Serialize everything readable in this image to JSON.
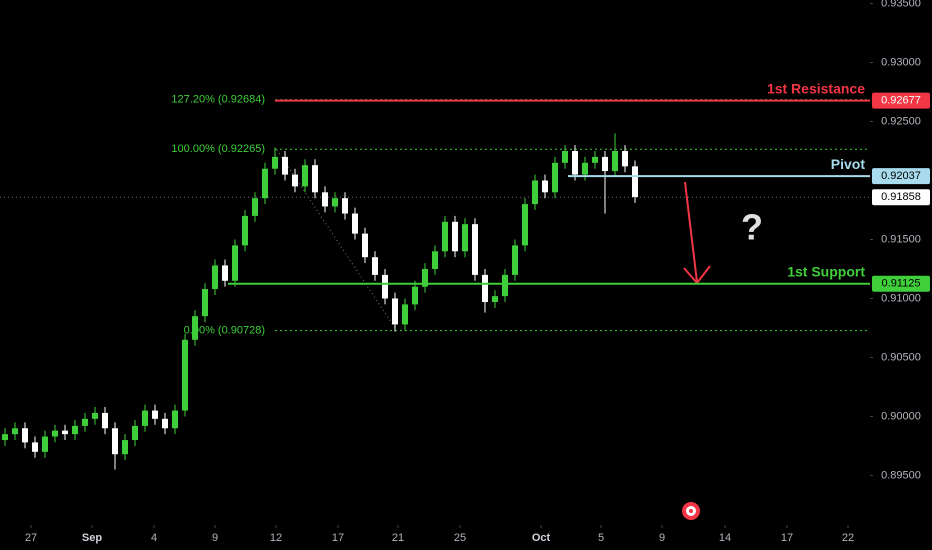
{
  "chart_data": {
    "type": "candlestick",
    "xlim": [
      -0.5,
      86.5
    ],
    "ylim": [
      0.8908,
      0.9353
    ],
    "xticks": [
      {
        "value": 2.6,
        "label": "27"
      },
      {
        "value": 8.7,
        "label": "Sep"
      },
      {
        "value": 14.9,
        "label": "4"
      },
      {
        "value": 21,
        "label": "9"
      },
      {
        "value": 27.1,
        "label": "12"
      },
      {
        "value": 33.3,
        "label": "17"
      },
      {
        "value": 39.3,
        "label": "21"
      },
      {
        "value": 45.5,
        "label": "25"
      },
      {
        "value": 53.6,
        "label": "Oct"
      },
      {
        "value": 59.6,
        "label": "5"
      },
      {
        "value": 65.7,
        "label": "9"
      },
      {
        "value": 72,
        "label": "14"
      },
      {
        "value": 78.2,
        "label": "17"
      },
      {
        "value": 84.3,
        "label": "22"
      }
    ],
    "yticks": [
      {
        "value": 0.935,
        "label": "0.93500"
      },
      {
        "value": 0.93,
        "label": "0.93000"
      },
      {
        "value": 0.925,
        "label": "0.92500"
      },
      {
        "value": 0.915,
        "label": "0.91500"
      },
      {
        "value": 0.91,
        "label": "0.91000"
      },
      {
        "value": 0.905,
        "label": "0.90500"
      },
      {
        "value": 0.9,
        "label": "0.90000"
      },
      {
        "value": 0.895,
        "label": "0.89500"
      }
    ],
    "up_color": "#3fcf3a",
    "down_color": "#ffffff",
    "open": [
      0.898,
      0.8985,
      0.899,
      0.8978,
      0.897,
      0.8983,
      0.8988,
      0.8985,
      0.8992,
      0.8998,
      0.9003,
      0.899,
      0.8968,
      0.898,
      0.8992,
      0.9005,
      0.8998,
      0.899,
      0.9005,
      0.9065,
      0.9085,
      0.9108,
      0.9128,
      0.9115,
      0.9145,
      0.917,
      0.9185,
      0.921,
      0.922,
      0.9205,
      0.9195,
      0.9213,
      0.919,
      0.9178,
      0.9185,
      0.9172,
      0.9155,
      0.9135,
      0.912,
      0.91,
      0.9078,
      0.9095,
      0.911,
      0.9125,
      0.914,
      0.9165,
      0.914,
      0.9163,
      0.912,
      0.9097,
      0.9102,
      0.912,
      0.9145,
      0.918,
      0.92,
      0.919,
      0.9215,
      0.9225,
      0.9205,
      0.9215,
      0.922,
      0.9208,
      0.9225,
      0.9212
    ],
    "high": [
      0.899,
      0.8995,
      0.8995,
      0.8983,
      0.8988,
      0.8993,
      0.8993,
      0.8997,
      0.9003,
      0.9008,
      0.9008,
      0.8995,
      0.8985,
      0.8997,
      0.901,
      0.901,
      0.9003,
      0.901,
      0.907,
      0.909,
      0.9113,
      0.9133,
      0.9133,
      0.915,
      0.9175,
      0.919,
      0.9215,
      0.9228,
      0.9225,
      0.921,
      0.9218,
      0.9218,
      0.9195,
      0.919,
      0.919,
      0.9177,
      0.916,
      0.914,
      0.9125,
      0.9105,
      0.91,
      0.9115,
      0.913,
      0.9145,
      0.917,
      0.917,
      0.9168,
      0.9168,
      0.9125,
      0.9107,
      0.9125,
      0.915,
      0.9185,
      0.9205,
      0.9205,
      0.922,
      0.923,
      0.923,
      0.922,
      0.9225,
      0.9225,
      0.924,
      0.923,
      0.9217
    ],
    "low": [
      0.8975,
      0.898,
      0.8973,
      0.8965,
      0.8965,
      0.8978,
      0.898,
      0.898,
      0.8987,
      0.8993,
      0.8985,
      0.8955,
      0.8963,
      0.8975,
      0.8987,
      0.8993,
      0.8985,
      0.8985,
      0.9,
      0.906,
      0.908,
      0.9103,
      0.911,
      0.911,
      0.914,
      0.9165,
      0.918,
      0.9205,
      0.92,
      0.919,
      0.919,
      0.9185,
      0.9173,
      0.9173,
      0.9167,
      0.915,
      0.913,
      0.9115,
      0.9095,
      0.9072,
      0.9073,
      0.909,
      0.9105,
      0.912,
      0.9135,
      0.9135,
      0.9135,
      0.9115,
      0.9088,
      0.9092,
      0.9097,
      0.9115,
      0.914,
      0.9175,
      0.9185,
      0.9185,
      0.921,
      0.92,
      0.92,
      0.921,
      0.9172,
      0.9203,
      0.9207,
      0.9181
    ],
    "close": [
      0.8985,
      0.899,
      0.8978,
      0.897,
      0.8983,
      0.8988,
      0.8985,
      0.8992,
      0.8998,
      0.9003,
      0.899,
      0.8968,
      0.898,
      0.8992,
      0.9005,
      0.8998,
      0.899,
      0.9005,
      0.9065,
      0.9085,
      0.9108,
      0.9128,
      0.9115,
      0.9145,
      0.917,
      0.9185,
      0.921,
      0.922,
      0.9205,
      0.9195,
      0.9213,
      0.919,
      0.9178,
      0.9185,
      0.9172,
      0.9155,
      0.9135,
      0.912,
      0.91,
      0.9078,
      0.9095,
      0.911,
      0.9125,
      0.914,
      0.9165,
      0.914,
      0.9163,
      0.912,
      0.9097,
      0.9102,
      0.912,
      0.9145,
      0.918,
      0.92,
      0.919,
      0.9215,
      0.9225,
      0.9205,
      0.9215,
      0.922,
      0.9208,
      0.9225,
      0.9212,
      0.9186
    ],
    "levels": [
      {
        "name": "1st Resistance",
        "value": 0.92677,
        "value_label": "0.92677",
        "color": "#f23645",
        "from": 27
      },
      {
        "name": "Pivot",
        "value": 0.92037,
        "value_label": "0.92037",
        "color": "#a8dced",
        "from": 56.3
      },
      {
        "name": "1st Support",
        "value": 0.91125,
        "value_label": "0.91125",
        "color": "#3fcf3a",
        "from": 22.3
      }
    ],
    "fib_levels": [
      {
        "label": "127.20% (0.92684)",
        "value": 0.92684
      },
      {
        "label": "100.00% (0.92265)",
        "value": 0.92265
      },
      {
        "label": "0.00% (0.90728)",
        "value": 0.90728
      }
    ],
    "fib_color": "#3fcf3a",
    "last_price": {
      "value": 0.91858,
      "label": "0.91858"
    },
    "annotation": "?"
  }
}
